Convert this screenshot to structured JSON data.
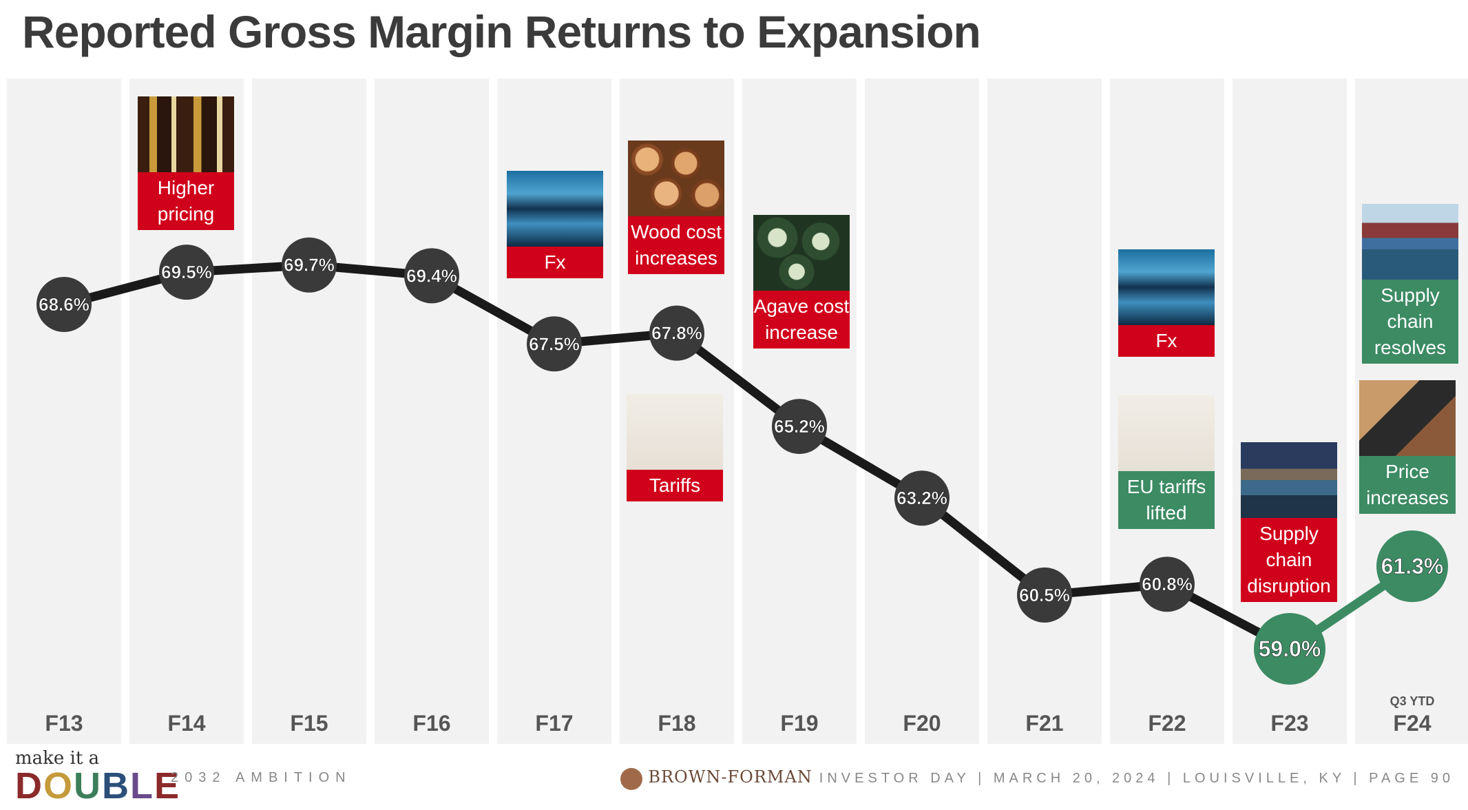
{
  "title": "Reported Gross Margin Returns to Expansion",
  "chart_data": {
    "type": "line",
    "categories": [
      "F13",
      "F14",
      "F15",
      "F16",
      "F17",
      "F18",
      "F19",
      "F20",
      "F21",
      "F22",
      "F23",
      "F24"
    ],
    "values": [
      68.6,
      69.5,
      69.7,
      69.4,
      67.5,
      67.8,
      65.2,
      63.2,
      60.5,
      60.8,
      59.0,
      61.3
    ],
    "labels": [
      "68.6%",
      "69.5%",
      "69.7%",
      "69.4%",
      "67.5%",
      "67.8%",
      "65.2%",
      "63.2%",
      "60.5%",
      "60.8%",
      "59.0%",
      "61.3%"
    ],
    "last_category_note": "Q3 YTD",
    "colors": {
      "line": "#1a1a1a",
      "marker": "#3a3a3a",
      "highlight": "#3c8b63",
      "column_bg": "#f2f2f2"
    }
  },
  "annotations": [
    {
      "category": "F14",
      "text_lines": [
        "Higher",
        "pricing"
      ],
      "style": "red",
      "image": "whiskey-bottles-image"
    },
    {
      "category": "F17",
      "text_lines": [
        "Fx"
      ],
      "style": "red",
      "image": "currency-board-image"
    },
    {
      "category": "F18",
      "text_lines": [
        "Wood cost",
        "increases"
      ],
      "style": "red",
      "image": "wood-logs-image"
    },
    {
      "category": "F18",
      "text_lines": [
        "Tariffs"
      ],
      "style": "red",
      "image": "tariff-dictionary-image"
    },
    {
      "category": "F19",
      "text_lines": [
        "Agave cost",
        "increase"
      ],
      "style": "red",
      "image": "agave-image"
    },
    {
      "category": "F22",
      "text_lines": [
        "Fx"
      ],
      "style": "red",
      "image": "currency-board-image"
    },
    {
      "category": "F22",
      "text_lines": [
        "EU tariffs",
        "lifted"
      ],
      "style": "green",
      "image": "tariff-dictionary-image"
    },
    {
      "category": "F23",
      "text_lines": [
        "Supply chain",
        "disruption"
      ],
      "style": "red",
      "image": "shipping-port-image"
    },
    {
      "category": "F24",
      "text_lines": [
        "Supply chain",
        "resolves"
      ],
      "style": "green",
      "image": "cargo-ship-image"
    },
    {
      "category": "F24",
      "text_lines": [
        "Price",
        "increases"
      ],
      "style": "green",
      "image": "card-payment-image"
    }
  ],
  "footer": {
    "make_it_a": "make it a",
    "double": "DOUBLE",
    "ambition": "2032 AMBITION",
    "brand": "BROWN-FORMAN",
    "event": "INVESTOR DAY | MARCH 20, 2024 | LOUISVILLE, KY | PAGE 90"
  }
}
